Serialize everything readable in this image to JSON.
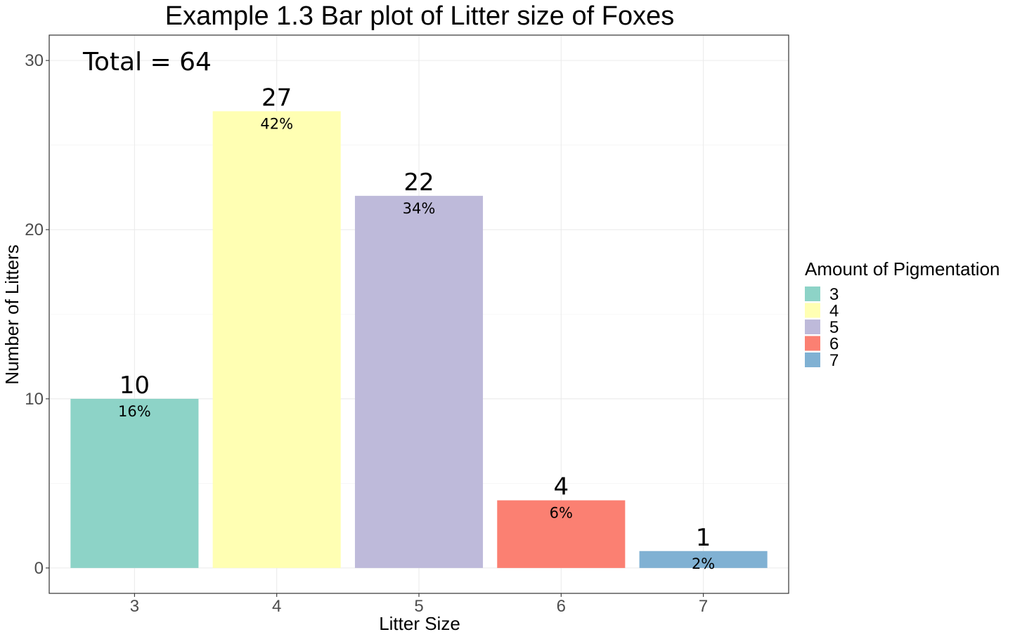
{
  "chart_data": {
    "type": "bar",
    "title": "Example 1.3 Bar plot of Litter size of Foxes",
    "xlabel": "Litter Size",
    "ylabel": "Number of Litters",
    "categories": [
      "3",
      "4",
      "5",
      "6",
      "7"
    ],
    "values": [
      10,
      27,
      22,
      4,
      1
    ],
    "percent_labels": [
      "16%",
      "42%",
      "34%",
      "6%",
      "2%"
    ],
    "colors": [
      "#8dd3c7",
      "#ffffb3",
      "#bebada",
      "#fb8072",
      "#80b1d3"
    ],
    "ylim": [
      -1.5,
      31.5
    ],
    "yticks": [
      0,
      10,
      20,
      30
    ],
    "grid": true,
    "annotation": "Total = 64",
    "legend": {
      "title": "Amount of Pigmentation",
      "position": "right",
      "entries": [
        "3",
        "4",
        "5",
        "6",
        "7"
      ]
    }
  }
}
